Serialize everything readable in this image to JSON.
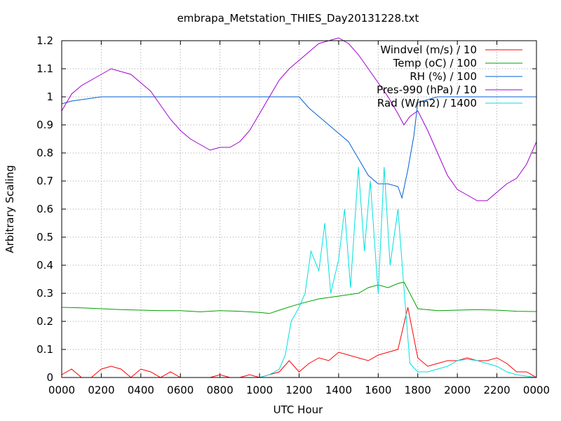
{
  "chart_data": {
    "type": "line",
    "title": "embrapa_Metstation_THIES_Day20131228.txt",
    "xlabel": "UTC Hour",
    "ylabel": "Arbitrary Scaling",
    "xlim": [
      0,
      24
    ],
    "ylim": [
      0,
      1.2
    ],
    "x_ticks": [
      "0000",
      "0200",
      "0400",
      "0600",
      "0800",
      "1000",
      "1200",
      "1400",
      "1600",
      "1800",
      "2000",
      "2200",
      "0000"
    ],
    "y_ticks": [
      "0",
      "0.1",
      "0.2",
      "0.3",
      "0.4",
      "0.5",
      "0.6",
      "0.7",
      "0.8",
      "0.9",
      "1",
      "1.1",
      "1.2"
    ],
    "grid": true,
    "legend_position": "top-right",
    "series": [
      {
        "name": "Windvel (m/s) / 10",
        "color": "#ff0000",
        "x": [
          0,
          0.5,
          1,
          1.5,
          2,
          2.5,
          3,
          3.5,
          4,
          4.5,
          5,
          5.5,
          6,
          6.5,
          7,
          7.5,
          8,
          8.5,
          9,
          9.5,
          10,
          10.5,
          11,
          11.5,
          12,
          12.5,
          13,
          13.5,
          14,
          14.5,
          15,
          15.5,
          16,
          16.5,
          17,
          17.5,
          18,
          18.5,
          19,
          19.5,
          20,
          20.5,
          21,
          21.5,
          22,
          22.5,
          23,
          23.5,
          24
        ],
        "y": [
          0.01,
          0.03,
          0.0,
          0.0,
          0.03,
          0.04,
          0.03,
          0.0,
          0.03,
          0.02,
          0.0,
          0.02,
          0.0,
          0.0,
          0.0,
          0.0,
          0.01,
          0.0,
          0.0,
          0.01,
          0.0,
          0.01,
          0.02,
          0.06,
          0.02,
          0.05,
          0.07,
          0.06,
          0.09,
          0.08,
          0.07,
          0.06,
          0.08,
          0.09,
          0.1,
          0.25,
          0.07,
          0.04,
          0.05,
          0.06,
          0.06,
          0.07,
          0.06,
          0.06,
          0.07,
          0.05,
          0.02,
          0.02,
          0.0
        ]
      },
      {
        "name": "Temp (oC) / 100",
        "color": "#00a000",
        "x": [
          0,
          1,
          2,
          3,
          4,
          5,
          6,
          7,
          8,
          9,
          10,
          10.5,
          11,
          12,
          13,
          14,
          15,
          15.5,
          16,
          16.5,
          17,
          17.3,
          17.6,
          18,
          19,
          20,
          21,
          22,
          23,
          24
        ],
        "y": [
          0.25,
          0.248,
          0.245,
          0.242,
          0.24,
          0.238,
          0.238,
          0.234,
          0.238,
          0.236,
          0.232,
          0.228,
          0.24,
          0.262,
          0.28,
          0.29,
          0.3,
          0.32,
          0.33,
          0.32,
          0.335,
          0.34,
          0.3,
          0.245,
          0.238,
          0.24,
          0.242,
          0.24,
          0.236,
          0.235
        ]
      },
      {
        "name": "RH (%) / 100",
        "color": "#0060d0",
        "x": [
          0,
          0.5,
          1,
          1.5,
          2,
          4,
          6,
          8,
          10,
          11,
          12,
          12.5,
          13,
          13.5,
          14,
          14.5,
          15,
          15.5,
          16,
          16.5,
          17,
          17.2,
          17.5,
          17.8,
          18,
          19,
          20,
          21,
          22,
          23,
          24
        ],
        "y": [
          0.975,
          0.985,
          0.99,
          0.995,
          1.0,
          1.0,
          1.0,
          1.0,
          1.0,
          1.0,
          1.0,
          0.96,
          0.93,
          0.9,
          0.87,
          0.84,
          0.78,
          0.72,
          0.69,
          0.69,
          0.68,
          0.64,
          0.74,
          0.86,
          0.98,
          1.0,
          1.0,
          1.0,
          1.0,
          1.0,
          1.0
        ]
      },
      {
        "name": "Pres-990 (hPa) / 10",
        "color": "#a000d0",
        "x": [
          0,
          0.5,
          1,
          1.5,
          2,
          2.5,
          3,
          3.5,
          4,
          4.5,
          5,
          5.5,
          6,
          6.5,
          7,
          7.5,
          8,
          8.5,
          9,
          9.5,
          10,
          10.5,
          11,
          11.5,
          12,
          12.5,
          13,
          13.5,
          14,
          14.5,
          15,
          15.5,
          16,
          16.5,
          17,
          17.3,
          17.6,
          18,
          18.5,
          19,
          19.5,
          20,
          20.5,
          21,
          21.5,
          22,
          22.5,
          23,
          23.5,
          24
        ],
        "y": [
          0.95,
          1.01,
          1.04,
          1.06,
          1.08,
          1.1,
          1.09,
          1.08,
          1.05,
          1.02,
          0.97,
          0.92,
          0.88,
          0.85,
          0.83,
          0.81,
          0.82,
          0.82,
          0.84,
          0.88,
          0.94,
          1.0,
          1.06,
          1.1,
          1.13,
          1.16,
          1.19,
          1.2,
          1.21,
          1.19,
          1.15,
          1.1,
          1.05,
          1.0,
          0.94,
          0.9,
          0.93,
          0.95,
          0.88,
          0.8,
          0.72,
          0.67,
          0.65,
          0.63,
          0.63,
          0.66,
          0.69,
          0.71,
          0.76,
          0.84
        ]
      },
      {
        "name": "Rad (W/m2) / 1400",
        "color": "#00e0e0",
        "x": [
          0,
          5,
          10,
          10.5,
          11,
          11.3,
          11.6,
          12,
          12.3,
          12.6,
          13,
          13.3,
          13.6,
          14,
          14.3,
          14.6,
          15,
          15.3,
          15.6,
          16,
          16.3,
          16.6,
          17,
          17.3,
          17.6,
          18,
          18.5,
          19,
          19.5,
          20,
          20.5,
          21,
          21.5,
          22,
          22.5,
          23,
          24
        ],
        "y": [
          0.0,
          0.0,
          0.0,
          0.01,
          0.03,
          0.08,
          0.2,
          0.25,
          0.3,
          0.45,
          0.38,
          0.55,
          0.3,
          0.42,
          0.6,
          0.32,
          0.75,
          0.45,
          0.7,
          0.3,
          0.75,
          0.4,
          0.6,
          0.32,
          0.05,
          0.02,
          0.02,
          0.03,
          0.04,
          0.06,
          0.065,
          0.06,
          0.05,
          0.04,
          0.02,
          0.01,
          0.0
        ]
      }
    ]
  }
}
